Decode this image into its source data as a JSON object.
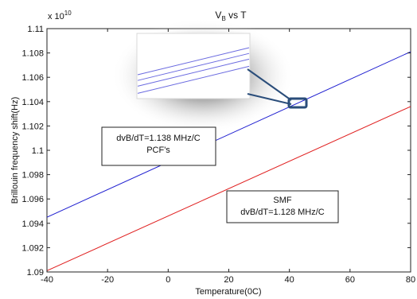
{
  "chart_data": {
    "type": "line",
    "title": "V",
    "title_subscript": "B",
    "title_suffix": " vs T",
    "xlabel": "Temperature(0C)",
    "ylabel": "Brillouin frequency shift(Hz)",
    "y_exponent_label": "x 10",
    "y_exponent_power": "10",
    "xlim": [
      -40,
      80
    ],
    "ylim": [
      1.09,
      1.11
    ],
    "x_ticks": [
      -40,
      -20,
      0,
      20,
      40,
      60,
      80
    ],
    "x_tick_labels": [
      "-40",
      "-20",
      "0",
      "20",
      "40",
      "60",
      "80"
    ],
    "y_ticks": [
      1.09,
      1.092,
      1.094,
      1.096,
      1.098,
      1.1,
      1.102,
      1.104,
      1.106,
      1.108,
      1.11
    ],
    "y_tick_labels": [
      "1.09",
      "1.092",
      "1.094",
      "1.096",
      "1.098",
      "1.1",
      "1.102",
      "1.104",
      "1.106",
      "1.108",
      "1.11"
    ],
    "grid": false,
    "series": [
      {
        "color": "#1f1fd0",
        "x": [
          -40,
          80
        ],
        "y": [
          1.0945,
          1.1081
        ]
      },
      {
        "color": "#e02020",
        "x": [
          -40,
          80
        ],
        "y": [
          1.0901,
          1.1036
        ]
      }
    ],
    "annotations": [
      {
        "lines": [
          "dvB/dT=1.138 MHz/C",
          "PCF's"
        ],
        "x": -28,
        "y": 1.1014
      },
      {
        "lines": [
          "SMF",
          "dvB/dT=1.128 MHz/C"
        ],
        "x": 24,
        "y": 1.0974
      }
    ],
    "inset": {
      "lines_y_offsets": [
        0.0,
        0.8,
        1.6,
        2.6
      ],
      "zoom_point_x": 42,
      "zoom_point_y": 1.1038
    }
  }
}
